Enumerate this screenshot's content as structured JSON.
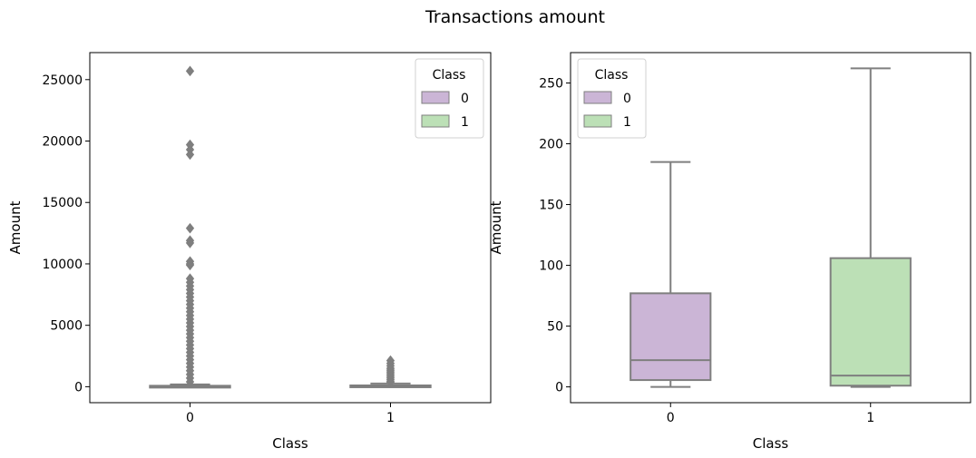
{
  "figure": {
    "title": "Transactions amount"
  },
  "colors": {
    "class_0": "#cbb5d6",
    "class_1": "#bce0b6",
    "line": "#7f7f7f"
  },
  "chart_data": [
    {
      "type": "box",
      "xlabel": "Class",
      "ylabel": "Amount",
      "categories": [
        "0",
        "1"
      ],
      "ylim": [
        -1300,
        27200
      ],
      "yticks": [
        0,
        5000,
        10000,
        15000,
        20000,
        25000
      ],
      "grid": false,
      "showfliers": true,
      "legend": {
        "title": "Class",
        "entries": [
          "0",
          "1"
        ],
        "placement": "top-right"
      },
      "boxes": [
        {
          "category": "0",
          "whislo": 0,
          "q1": 5.6,
          "median": 22,
          "q3": 77,
          "whishi": 185,
          "fliers": [
            25700,
            19700,
            19300,
            18900,
            12900,
            11900,
            11700,
            10200,
            10000,
            9900,
            8800,
            8500,
            8200,
            7900,
            7600,
            7300,
            7000,
            6700,
            6400,
            6100,
            5800,
            5500,
            5200,
            4900,
            4600,
            4300,
            4000,
            3700,
            3400,
            3100,
            2800,
            2500,
            2200,
            1900,
            1600,
            1300,
            1000,
            700,
            400
          ]
        },
        {
          "category": "1",
          "whislo": 0,
          "q1": 1,
          "median": 9.3,
          "q3": 105.9,
          "whishi": 262,
          "fliers": [
            2125,
            1900,
            1700,
            1500,
            1350,
            1200,
            1050,
            900,
            750,
            600,
            450,
            350
          ]
        }
      ]
    },
    {
      "type": "box",
      "xlabel": "Class",
      "ylabel": "Amount",
      "categories": [
        "0",
        "1"
      ],
      "ylim": [
        -13,
        275
      ],
      "yticks": [
        0,
        50,
        100,
        150,
        200,
        250
      ],
      "grid": false,
      "showfliers": false,
      "legend": {
        "title": "Class",
        "entries": [
          "0",
          "1"
        ],
        "placement": "top-left"
      },
      "boxes": [
        {
          "category": "0",
          "whislo": 0,
          "q1": 5.6,
          "median": 22,
          "q3": 77,
          "whishi": 185,
          "fliers": []
        },
        {
          "category": "1",
          "whislo": 0,
          "q1": 1,
          "median": 9.3,
          "q3": 105.9,
          "whishi": 262,
          "fliers": []
        }
      ]
    }
  ]
}
